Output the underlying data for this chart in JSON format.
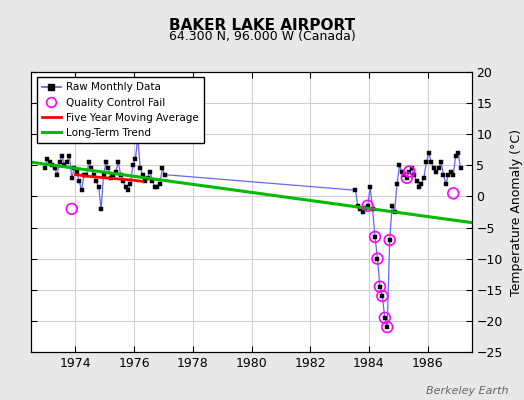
{
  "title": "BAKER LAKE AIRPORT",
  "subtitle": "64.300 N, 96.000 W (Canada)",
  "ylabel": "Temperature Anomaly (°C)",
  "watermark": "Berkeley Earth",
  "background_color": "#e8e8e8",
  "plot_bg_color": "#ffffff",
  "ylim": [
    -25,
    20
  ],
  "yticks": [
    -25,
    -20,
    -15,
    -10,
    -5,
    0,
    5,
    10,
    15,
    20
  ],
  "xlim_start": 1972.5,
  "xlim_end": 1987.5,
  "xticks": [
    1974,
    1976,
    1978,
    1980,
    1982,
    1984,
    1986
  ],
  "raw_x": [
    1972.958,
    1973.042,
    1973.125,
    1973.208,
    1973.292,
    1973.375,
    1973.458,
    1973.542,
    1973.625,
    1973.708,
    1973.792,
    1973.875,
    1973.958,
    1974.042,
    1974.125,
    1974.208,
    1974.292,
    1974.375,
    1974.458,
    1974.542,
    1974.625,
    1974.708,
    1974.792,
    1974.875,
    1974.958,
    1975.042,
    1975.125,
    1975.208,
    1975.292,
    1975.375,
    1975.458,
    1975.542,
    1975.625,
    1975.708,
    1975.792,
    1975.875,
    1975.958,
    1976.042,
    1976.125,
    1976.208,
    1976.292,
    1976.375,
    1976.458,
    1976.542,
    1976.625,
    1976.708,
    1976.792,
    1976.875,
    1976.958,
    1977.042,
    1983.542,
    1983.625,
    1983.708,
    1983.792,
    1983.875,
    1983.958,
    1984.042,
    1984.125,
    1984.208,
    1984.292,
    1984.375,
    1984.458,
    1984.542,
    1984.625,
    1984.708,
    1984.792,
    1984.875,
    1984.958,
    1985.042,
    1985.125,
    1985.208,
    1985.292,
    1985.375,
    1985.458,
    1985.542,
    1985.625,
    1985.708,
    1985.792,
    1985.875,
    1985.958,
    1986.042,
    1986.125,
    1986.208,
    1986.292,
    1986.375,
    1986.458,
    1986.542,
    1986.625,
    1986.708,
    1986.792,
    1986.875,
    1986.958,
    1987.042,
    1987.125
  ],
  "raw_y": [
    4.5,
    6.0,
    5.5,
    5.0,
    4.5,
    3.5,
    5.5,
    6.5,
    5.0,
    5.5,
    6.5,
    3.0,
    4.5,
    4.0,
    2.5,
    1.0,
    3.5,
    3.5,
    5.5,
    4.5,
    3.5,
    2.5,
    1.5,
    -2.0,
    3.5,
    5.5,
    4.5,
    3.0,
    3.5,
    4.0,
    5.5,
    3.5,
    2.5,
    1.5,
    1.0,
    2.0,
    5.0,
    6.0,
    9.5,
    4.5,
    3.5,
    2.5,
    3.0,
    4.0,
    2.5,
    1.5,
    1.5,
    2.0,
    4.5,
    3.5,
    1.0,
    -1.5,
    -2.0,
    -2.5,
    -1.8,
    -1.5,
    1.5,
    -2.0,
    -6.5,
    -10.0,
    -14.5,
    -16.0,
    -19.5,
    -21.0,
    -7.0,
    -1.5,
    -2.5,
    2.0,
    5.0,
    4.0,
    3.5,
    3.0,
    4.0,
    4.5,
    3.5,
    2.5,
    1.5,
    2.0,
    3.0,
    5.5,
    7.0,
    5.5,
    4.5,
    4.0,
    4.5,
    5.5,
    3.5,
    2.0,
    3.5,
    4.0,
    3.5,
    6.5,
    7.0,
    4.5
  ],
  "qc_fail_x": [
    1973.875,
    1983.958,
    1984.208,
    1984.292,
    1984.375,
    1984.458,
    1984.542,
    1984.625,
    1984.708,
    1985.292,
    1985.375,
    1986.875
  ],
  "qc_fail_y": [
    -2.0,
    -1.5,
    -6.5,
    -10.0,
    -14.5,
    -16.0,
    -19.5,
    -21.0,
    -7.0,
    3.0,
    4.0,
    0.5
  ],
  "moving_avg_x": [
    1974.0,
    1974.5,
    1975.0,
    1975.5,
    1976.0,
    1976.3
  ],
  "moving_avg_y": [
    3.5,
    3.2,
    3.0,
    2.8,
    2.6,
    2.4
  ],
  "trend_x": [
    1972.5,
    1987.5
  ],
  "trend_y": [
    5.5,
    -4.2
  ],
  "line_color": "#6666ff",
  "marker_color": "#000000",
  "qc_color": "#ff00ff",
  "moving_avg_color": "#ff0000",
  "trend_color": "#00bb00",
  "grid_color": "#cccccc"
}
